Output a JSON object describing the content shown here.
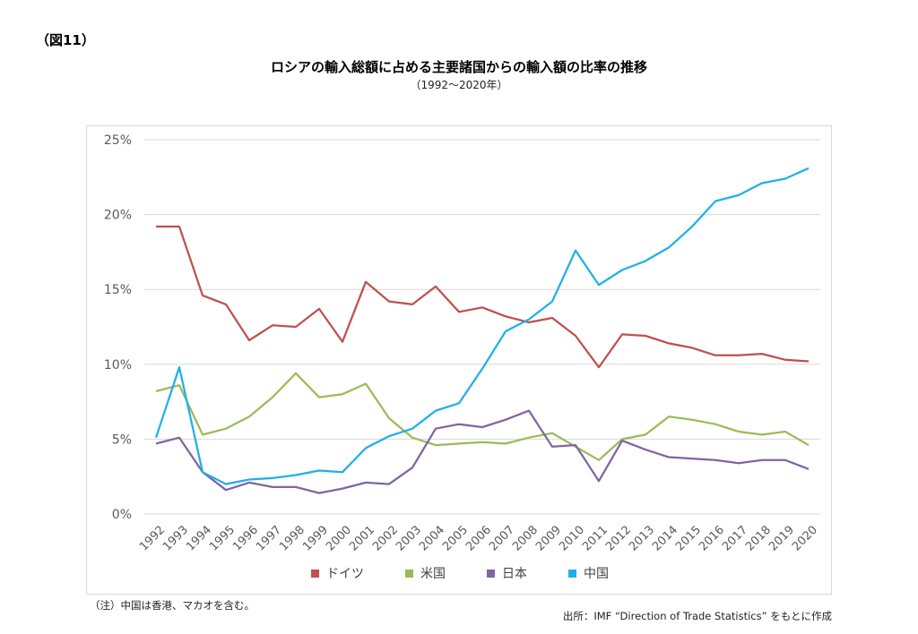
{
  "figure_label": "（図11）",
  "note": "（注）中国は香港、マカオを含む。",
  "source": "出所：IMF “Direction of Trade Statistics” をもとに作成",
  "chart_data": {
    "type": "line",
    "title": "ロシアの輸入総額に占める主要諸国からの輸入額の比率の推移",
    "subtitle": "（1992～2020年）",
    "xlabel": "",
    "ylabel": "",
    "ylim": [
      0,
      25
    ],
    "yticks": [
      0,
      5,
      10,
      15,
      20,
      25
    ],
    "ytick_labels": [
      "0%",
      "5%",
      "10%",
      "15%",
      "20%",
      "25%"
    ],
    "grid": true,
    "legend_position": "bottom",
    "categories": [
      "1992",
      "1993",
      "1994",
      "1995",
      "1996",
      "1997",
      "1998",
      "1999",
      "2000",
      "2001",
      "2002",
      "2003",
      "2004",
      "2005",
      "2006",
      "2007",
      "2008",
      "2009",
      "2010",
      "2011",
      "2012",
      "2013",
      "2014",
      "2015",
      "2016",
      "2017",
      "2018",
      "2019",
      "2020"
    ],
    "series": [
      {
        "name": "ドイツ",
        "color": "#c0504d",
        "values": [
          19.2,
          19.2,
          14.6,
          14.0,
          11.6,
          12.6,
          12.5,
          13.7,
          11.5,
          15.5,
          14.2,
          14.0,
          15.2,
          13.5,
          13.8,
          13.2,
          12.8,
          13.1,
          11.9,
          9.8,
          12.0,
          11.9,
          11.4,
          11.1,
          10.6,
          10.6,
          10.7,
          10.3,
          10.2
        ]
      },
      {
        "name": "米国",
        "color": "#9bbb59",
        "values": [
          8.2,
          8.6,
          5.3,
          5.7,
          6.5,
          7.8,
          9.4,
          7.8,
          8.0,
          8.7,
          6.4,
          5.1,
          4.6,
          4.7,
          4.8,
          4.7,
          5.1,
          5.4,
          4.5,
          3.6,
          5.0,
          5.3,
          6.5,
          6.3,
          6.0,
          5.5,
          5.3,
          5.5,
          4.6
        ]
      },
      {
        "name": "日本",
        "color": "#8064a2",
        "values": [
          4.7,
          5.1,
          2.8,
          1.6,
          2.1,
          1.8,
          1.8,
          1.4,
          1.7,
          2.1,
          2.0,
          3.1,
          5.7,
          6.0,
          5.8,
          6.3,
          6.9,
          4.5,
          4.6,
          2.2,
          4.9,
          4.3,
          3.8,
          3.7,
          3.6,
          3.4,
          3.6,
          3.6,
          3.0
        ]
      },
      {
        "name": "中国",
        "color": "#1fb0e8",
        "values": [
          5.1,
          9.8,
          2.8,
          2.0,
          2.3,
          2.4,
          2.6,
          2.9,
          2.8,
          4.4,
          5.2,
          5.7,
          6.9,
          7.4,
          9.7,
          12.2,
          13.0,
          14.2,
          17.6,
          15.3,
          16.3,
          16.9,
          17.8,
          19.2,
          20.9,
          21.3,
          22.1,
          22.4,
          23.1
        ]
      }
    ]
  }
}
